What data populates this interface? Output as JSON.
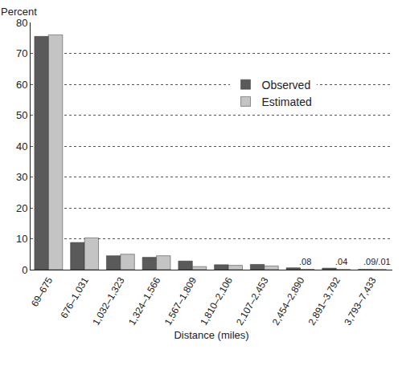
{
  "chart_data": {
    "type": "bar",
    "y_label": "Percent",
    "x_label": "Distance (miles)",
    "categories": [
      "69–675",
      "676–1,031",
      "1,032–1,323",
      "1,324–1,566",
      "1,567–1,809",
      "1,810–2,106",
      "2,107–2,453",
      "2,454–2,890",
      "2,891–3,792",
      "3,793–7,433"
    ],
    "series": [
      {
        "name": "Observed",
        "color": "#5a5a5a",
        "values": [
          75.5,
          8.8,
          4.5,
          4.0,
          2.8,
          1.6,
          1.7,
          0.6,
          0.5,
          0.09
        ]
      },
      {
        "name": "Estimated",
        "color": "#c4c4c4",
        "values": [
          76.0,
          10.3,
          5.0,
          4.5,
          1.0,
          1.4,
          1.2,
          0.08,
          0.04,
          0.01
        ]
      }
    ],
    "annotations": [
      {
        "text": ".08",
        "category": "2,454–2,890"
      },
      {
        "text": ".04",
        "category": "2,891–3,792"
      },
      {
        "text": ".09/.01",
        "category": "3,793–7,433"
      }
    ],
    "ylim": [
      0,
      80
    ],
    "yticks": [
      0,
      10,
      20,
      30,
      40,
      50,
      60,
      70,
      80
    ],
    "grid": true,
    "legend": "upper right"
  }
}
